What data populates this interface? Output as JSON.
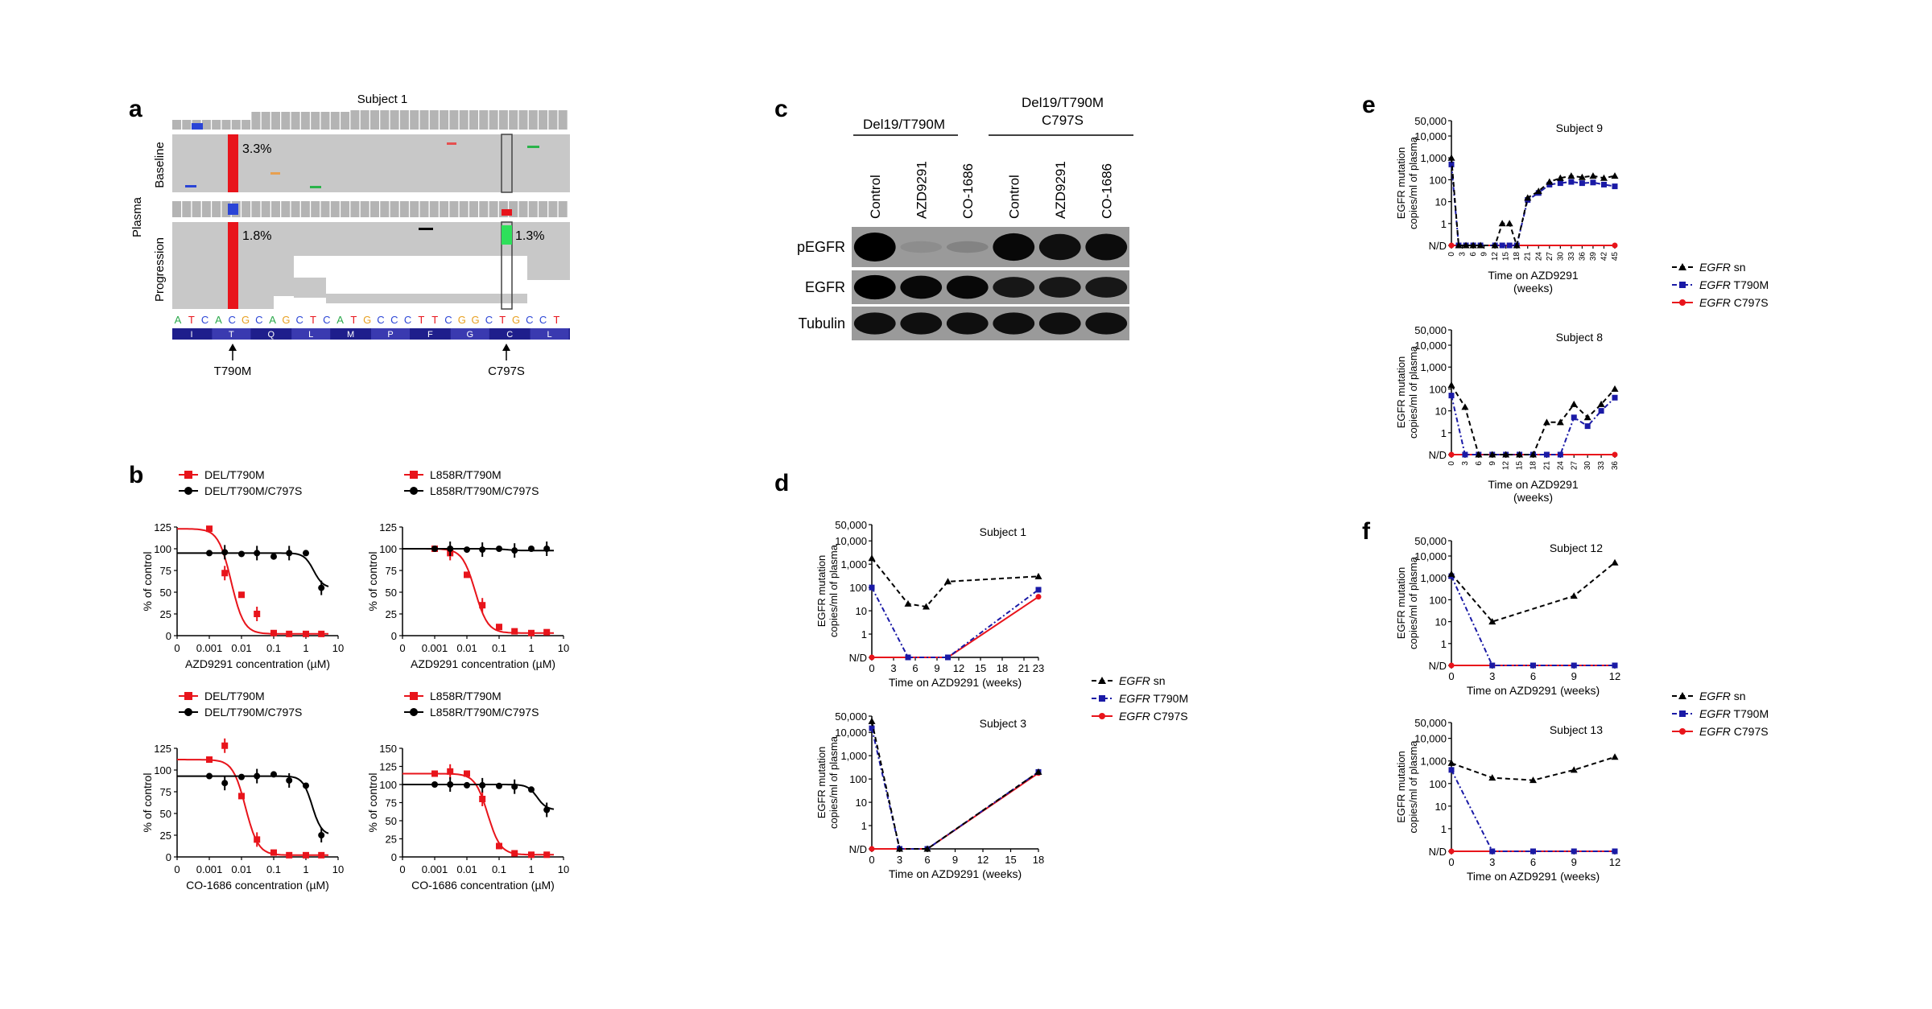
{
  "panels": {
    "a": {
      "letter": "a",
      "subject": "Subject 1",
      "group_label": "Plasma",
      "rows": [
        {
          "label": "Baseline",
          "t790m_pct": "3.3%"
        },
        {
          "label": "Progression",
          "t790m_pct": "1.8%",
          "c797s_pct": "1.3%"
        }
      ],
      "dna_sequence": [
        "A",
        "T",
        "C",
        "A",
        "C",
        "G",
        "C",
        "A",
        "G",
        "C",
        "T",
        "C",
        "A",
        "T",
        "G",
        "C",
        "C",
        "C",
        "T",
        "T",
        "C",
        "G",
        "G",
        "C",
        "T",
        "G",
        "C",
        "C",
        "T"
      ],
      "amino_acids": [
        "I",
        "T",
        "Q",
        "L",
        "M",
        "P",
        "F",
        "G",
        "C",
        "L"
      ],
      "mutations": [
        "T790M",
        "C797S"
      ]
    },
    "b": {
      "letter": "b",
      "y_ticks": [
        "0",
        "25",
        "50",
        "75",
        "100",
        "125"
      ],
      "y_ticks_2": [
        "0",
        "25",
        "50",
        "75",
        "100",
        "125",
        "150"
      ],
      "x_ticks": [
        "0",
        "0.001",
        "0.01",
        "0.1",
        "1",
        "10"
      ],
      "ylabel": "% of control",
      "xlabel_azd": "AZD9291 concentration (µM)",
      "xlabel_co": "CO-1686 concentration (µM)",
      "legend_del": [
        "DEL/T790M",
        "DEL/T790M/C797S"
      ],
      "legend_l858": [
        "L858R/T790M",
        "L858R/T790M/C797S"
      ]
    },
    "c": {
      "letter": "c",
      "groups": [
        "Del19/T790M",
        "Del19/T790M C797S"
      ],
      "lanes": [
        "Control",
        "AZD9291",
        "CO-1686",
        "Control",
        "AZD9291",
        "CO-1686"
      ],
      "rows": [
        "pEGFR",
        "EGFR",
        "Tubulin"
      ],
      "pegfr_intensity": [
        1.0,
        0.08,
        0.15,
        0.95,
        0.9,
        0.92
      ],
      "egfr_intensity": [
        1.0,
        0.95,
        0.95,
        0.85,
        0.85,
        0.85
      ],
      "tubulin_intensity": [
        0.9,
        0.9,
        0.9,
        0.9,
        0.9,
        0.9
      ]
    },
    "d": {
      "letter": "d"
    },
    "e": {
      "letter": "e"
    },
    "f": {
      "letter": "f"
    },
    "legend_items": [
      "EGFR",
      "sn",
      "T790M",
      "C797S"
    ],
    "common_plot_text": {
      "ylabel_1": "EGFR mutation",
      "ylabel_2": "copies/ml of plasma",
      "xlabel": "Time on AZD9291 (weeks)",
      "xlabel_l1": "Time on AZD9291",
      "xlabel_l2": "(weeks)",
      "y_ticks": [
        "N/D",
        "1",
        "10",
        "100",
        "1,000",
        "10,000",
        "50,000"
      ]
    }
  },
  "chart_data": [
    {
      "id": "b-top-left",
      "type": "scatter",
      "xlabel": "AZD9291 concentration (µM)",
      "ylabel": "% of control",
      "x": [
        "0",
        "0.001",
        "0.003",
        "0.01",
        "0.03",
        "0.1",
        "0.3",
        "1",
        "3"
      ],
      "series": [
        {
          "name": "DEL/T790M",
          "color": "#e8141b",
          "values": [
            null,
            123,
            72,
            47,
            25,
            3,
            2,
            2,
            2
          ]
        },
        {
          "name": "DEL/T790M/C797S",
          "color": "#000000",
          "values": [
            null,
            95,
            96,
            94,
            95,
            91,
            95,
            95,
            55
          ]
        }
      ]
    },
    {
      "id": "b-top-right",
      "type": "scatter",
      "xlabel": "AZD9291 concentration (µM)",
      "ylabel": "% of control",
      "x": [
        "0",
        "0.001",
        "0.003",
        "0.01",
        "0.03",
        "0.1",
        "0.3",
        "1",
        "3"
      ],
      "series": [
        {
          "name": "L858R/T790M",
          "color": "#e8141b",
          "values": [
            null,
            100,
            95,
            70,
            35,
            10,
            5,
            3,
            4
          ]
        },
        {
          "name": "L858R/T790M/C797S",
          "color": "#000000",
          "values": [
            null,
            100,
            100,
            99,
            99,
            100,
            98,
            100,
            100
          ]
        }
      ]
    },
    {
      "id": "b-bottom-left",
      "type": "scatter",
      "xlabel": "CO-1686 concentration (µM)",
      "ylabel": "% of control",
      "x": [
        "0",
        "0.001",
        "0.003",
        "0.01",
        "0.03",
        "0.1",
        "0.3",
        "1",
        "3"
      ],
      "series": [
        {
          "name": "DEL/T790M",
          "color": "#e8141b",
          "values": [
            null,
            112,
            128,
            70,
            20,
            5,
            2,
            2,
            2
          ]
        },
        {
          "name": "DEL/T790M/C797S",
          "color": "#000000",
          "values": [
            null,
            93,
            85,
            92,
            93,
            95,
            88,
            82,
            25
          ]
        }
      ]
    },
    {
      "id": "b-bottom-right",
      "type": "scatter",
      "xlabel": "CO-1686 concentration (µM)",
      "ylabel": "% of control",
      "x": [
        "0",
        "0.001",
        "0.003",
        "0.01",
        "0.03",
        "0.1",
        "0.3",
        "1",
        "3"
      ],
      "series": [
        {
          "name": "L858R/T790M",
          "color": "#e8141b",
          "values": [
            null,
            115,
            118,
            115,
            80,
            15,
            5,
            3,
            3
          ]
        },
        {
          "name": "L858R/T790M/C797S",
          "color": "#000000",
          "values": [
            null,
            100,
            100,
            99,
            99,
            98,
            97,
            93,
            65
          ]
        }
      ]
    },
    {
      "id": "d-subject-1",
      "type": "line",
      "title": "Subject 1",
      "x_ticks": [
        "0",
        "3",
        "6",
        "9",
        "12",
        "15",
        "18",
        "21",
        "23"
      ],
      "xlim": [
        0,
        23
      ],
      "series": [
        {
          "name": "EGFR sn",
          "x": [
            0,
            5,
            7.5,
            10.5,
            23
          ],
          "values": [
            1800,
            20,
            15,
            180,
            300
          ]
        },
        {
          "name": "EGFR T790M",
          "x": [
            0,
            5,
            10.5,
            23
          ],
          "values": [
            100,
            0,
            0,
            80
          ]
        },
        {
          "name": "EGFR C797S",
          "x": [
            0,
            5,
            10.5,
            23
          ],
          "values": [
            0,
            0,
            0,
            40
          ]
        }
      ]
    },
    {
      "id": "d-subject-3",
      "type": "line",
      "title": "Subject 3",
      "x_ticks": [
        "0",
        "3",
        "6",
        "9",
        "12",
        "15",
        "18"
      ],
      "xlim": [
        0,
        18
      ],
      "series": [
        {
          "name": "EGFR sn",
          "x": [
            0,
            3,
            6,
            18
          ],
          "values": [
            30000,
            0,
            0,
            200
          ]
        },
        {
          "name": "EGFR T790M",
          "x": [
            0,
            3,
            6,
            18
          ],
          "values": [
            15000,
            0,
            0,
            200
          ]
        },
        {
          "name": "EGFR C797S",
          "x": [
            0,
            3,
            6,
            18
          ],
          "values": [
            0,
            0,
            0,
            180
          ]
        }
      ]
    },
    {
      "id": "e-subject-9",
      "type": "line",
      "title": "Subject 9",
      "x_ticks": [
        "0",
        "3",
        "6",
        "9",
        "12",
        "15",
        "18",
        "21",
        "24",
        "27",
        "30",
        "33",
        "36",
        "39",
        "42",
        "45"
      ],
      "xlim": [
        0,
        45
      ],
      "series": [
        {
          "name": "EGFR sn",
          "x": [
            0,
            2,
            4,
            6,
            8,
            12,
            14,
            16,
            18,
            21,
            24,
            27,
            30,
            33,
            36,
            39,
            42,
            45
          ],
          "values": [
            1000,
            0,
            0,
            0,
            0,
            0,
            1,
            1,
            0,
            15,
            30,
            80,
            120,
            150,
            130,
            150,
            120,
            150
          ]
        },
        {
          "name": "EGFR T790M",
          "x": [
            0,
            2,
            4,
            6,
            8,
            12,
            14,
            16,
            18,
            21,
            24,
            27,
            30,
            33,
            36,
            39,
            42,
            45
          ],
          "values": [
            500,
            0,
            0,
            0,
            0,
            0,
            0,
            0,
            0,
            12,
            25,
            60,
            70,
            80,
            70,
            75,
            60,
            50
          ]
        },
        {
          "name": "EGFR C797S",
          "x": [
            0,
            45
          ],
          "values": [
            0,
            0
          ]
        }
      ]
    },
    {
      "id": "e-subject-8",
      "type": "line",
      "title": "Subject 8",
      "x_ticks": [
        "0",
        "3",
        "6",
        "9",
        "12",
        "15",
        "18",
        "21",
        "24",
        "27",
        "30",
        "33",
        "36"
      ],
      "xlim": [
        0,
        36
      ],
      "series": [
        {
          "name": "EGFR sn",
          "x": [
            0,
            3,
            6,
            9,
            12,
            15,
            18,
            21,
            24,
            27,
            30,
            33,
            36
          ],
          "values": [
            150,
            15,
            0,
            0,
            0,
            0,
            0,
            3,
            3,
            20,
            5,
            20,
            100
          ]
        },
        {
          "name": "EGFR T790M",
          "x": [
            0,
            3,
            6,
            9,
            12,
            15,
            18,
            21,
            24,
            27,
            30,
            33,
            36
          ],
          "values": [
            50,
            0,
            0,
            0,
            0,
            0,
            0,
            0,
            0,
            5,
            2,
            10,
            40
          ]
        },
        {
          "name": "EGFR C797S",
          "x": [
            0,
            36
          ],
          "values": [
            0,
            0
          ]
        }
      ]
    },
    {
      "id": "f-subject-12",
      "type": "line",
      "title": "Subject 12",
      "x_ticks": [
        "0",
        "3",
        "6",
        "9",
        "12"
      ],
      "xlim": [
        0,
        12
      ],
      "series": [
        {
          "name": "EGFR sn",
          "x": [
            0,
            3,
            9,
            12
          ],
          "values": [
            1500,
            10,
            150,
            5000
          ]
        },
        {
          "name": "EGFR T790M",
          "x": [
            0,
            3,
            6,
            9,
            12
          ],
          "values": [
            1200,
            0,
            0,
            0,
            0
          ]
        },
        {
          "name": "EGFR C797S",
          "x": [
            0,
            12
          ],
          "values": [
            0,
            0
          ]
        }
      ]
    },
    {
      "id": "f-subject-13",
      "type": "line",
      "title": "Subject 13",
      "x_ticks": [
        "0",
        "3",
        "6",
        "9",
        "12"
      ],
      "xlim": [
        0,
        12
      ],
      "series": [
        {
          "name": "EGFR sn",
          "x": [
            0,
            3,
            6,
            9,
            12
          ],
          "values": [
            800,
            180,
            140,
            400,
            1500
          ]
        },
        {
          "name": "EGFR T790M",
          "x": [
            0,
            3,
            6,
            9,
            12
          ],
          "values": [
            400,
            0,
            0,
            0,
            0
          ]
        },
        {
          "name": "EGFR C797S",
          "x": [
            0,
            12
          ],
          "values": [
            0,
            0
          ]
        }
      ]
    }
  ]
}
